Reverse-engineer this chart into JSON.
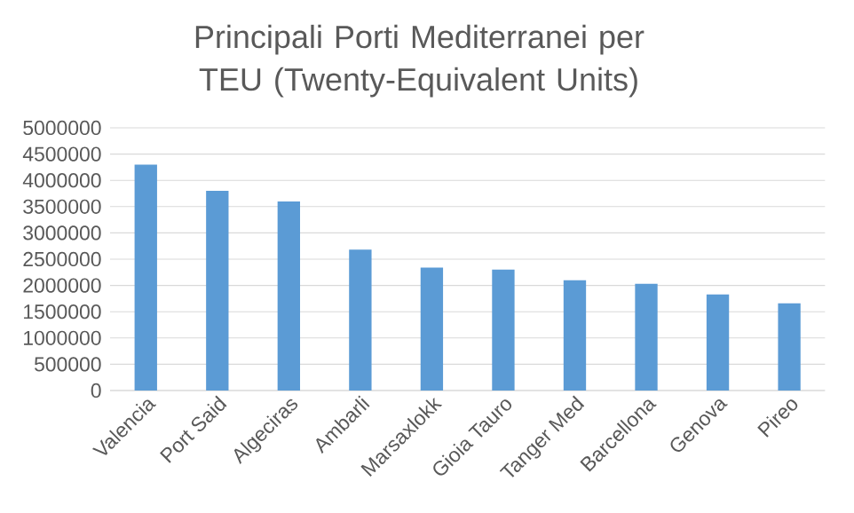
{
  "chart_data": {
    "type": "bar",
    "title": "Principali Porti Mediterranei per TEU (Twenty-Equivalent Units)",
    "categories": [
      "Valencia",
      "Port Said",
      "Algeciras",
      "Ambarli",
      "Marsaxlokk",
      "Gioia Tauro",
      "Tanger Med",
      "Barcellona",
      "Genova",
      "Pireo"
    ],
    "values": [
      4300000,
      3800000,
      3600000,
      2680000,
      2340000,
      2300000,
      2100000,
      2030000,
      1830000,
      1660000
    ],
    "color": "#5b9bd5",
    "ylim": [
      0,
      5000000
    ],
    "yticks": [
      0,
      500000,
      1000000,
      1500000,
      2000000,
      2500000,
      3000000,
      3500000,
      4000000,
      4500000,
      5000000
    ],
    "grid": "y"
  }
}
